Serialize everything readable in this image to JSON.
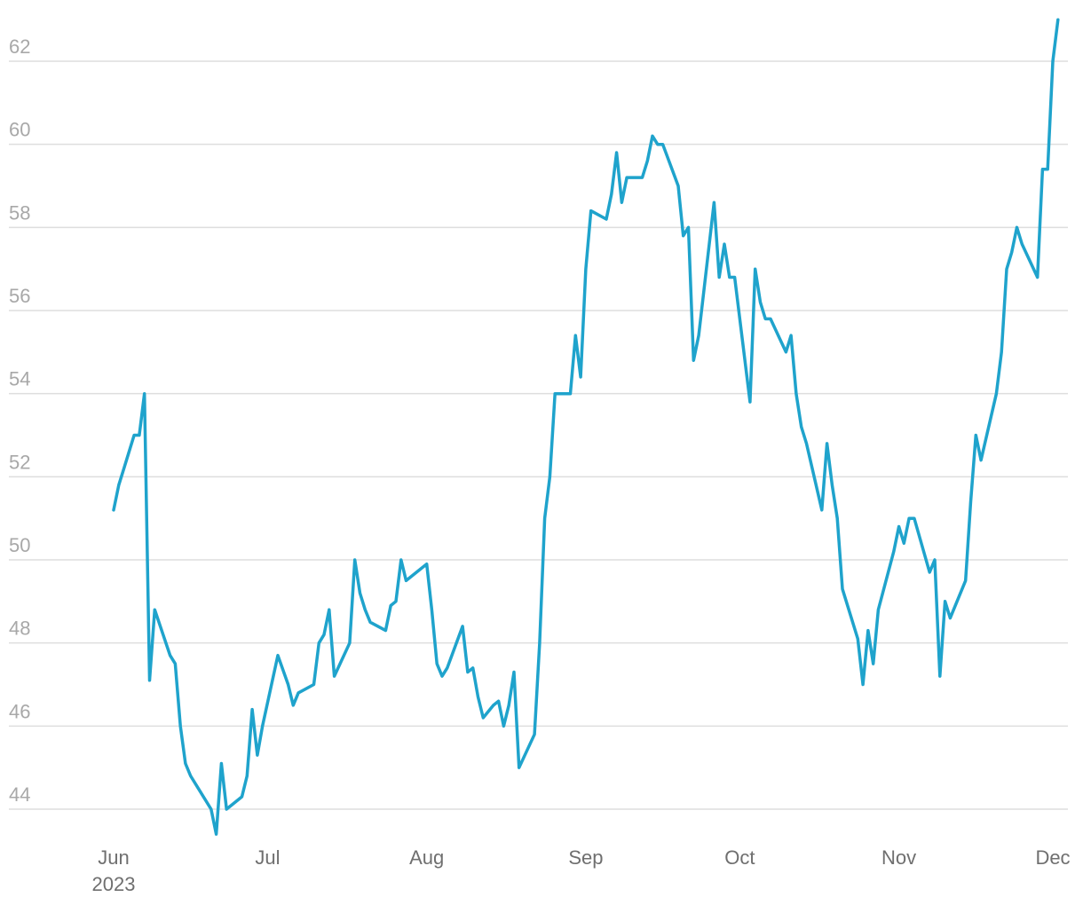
{
  "chart_data": {
    "type": "line",
    "title": "",
    "xlabel": "",
    "ylabel": "",
    "grid": "horizontal",
    "legend": "none",
    "colors": {
      "line": "#1fa3cc",
      "grid": "#dedede",
      "ytick": "#a8a8a8",
      "xtick": "#6f6f6f"
    },
    "ylim": [
      43.2,
      63
    ],
    "xlim": [
      "2023-05-27",
      "2023-12-01"
    ],
    "y_ticks": [
      44,
      46,
      48,
      50,
      52,
      54,
      56,
      58,
      60,
      62
    ],
    "x_ticks": [
      {
        "date": "2023-06-01",
        "label": "Jun",
        "sublabel": "2023"
      },
      {
        "date": "2023-07-01",
        "label": "Jul",
        "sublabel": ""
      },
      {
        "date": "2023-08-01",
        "label": "Aug",
        "sublabel": ""
      },
      {
        "date": "2023-09-01",
        "label": "Sep",
        "sublabel": ""
      },
      {
        "date": "2023-10-01",
        "label": "Oct",
        "sublabel": ""
      },
      {
        "date": "2023-11-01",
        "label": "Nov",
        "sublabel": ""
      },
      {
        "date": "2023-12-01",
        "label": "Dec",
        "sublabel": ""
      }
    ],
    "series": [
      {
        "values": [
          [
            "2023-06-01",
            51.2
          ],
          [
            "2023-06-02",
            51.8
          ],
          [
            "2023-06-03",
            52.2
          ],
          [
            "2023-06-05",
            53.0
          ],
          [
            "2023-06-06",
            53.0
          ],
          [
            "2023-06-07",
            54.0
          ],
          [
            "2023-06-08",
            47.1
          ],
          [
            "2023-06-09",
            48.8
          ],
          [
            "2023-06-12",
            47.7
          ],
          [
            "2023-06-13",
            47.5
          ],
          [
            "2023-06-14",
            46.0
          ],
          [
            "2023-06-15",
            45.1
          ],
          [
            "2023-06-16",
            44.8
          ],
          [
            "2023-06-20",
            44.0
          ],
          [
            "2023-06-21",
            43.4
          ],
          [
            "2023-06-22",
            45.1
          ],
          [
            "2023-06-23",
            44.0
          ],
          [
            "2023-06-26",
            44.3
          ],
          [
            "2023-06-27",
            44.8
          ],
          [
            "2023-06-28",
            46.4
          ],
          [
            "2023-06-29",
            45.3
          ],
          [
            "2023-06-30",
            46.0
          ],
          [
            "2023-07-03",
            47.7
          ],
          [
            "2023-07-05",
            47.0
          ],
          [
            "2023-07-06",
            46.5
          ],
          [
            "2023-07-07",
            46.8
          ],
          [
            "2023-07-10",
            47.0
          ],
          [
            "2023-07-11",
            48.0
          ],
          [
            "2023-07-12",
            48.2
          ],
          [
            "2023-07-13",
            48.8
          ],
          [
            "2023-07-14",
            47.2
          ],
          [
            "2023-07-17",
            48.0
          ],
          [
            "2023-07-18",
            50.0
          ],
          [
            "2023-07-19",
            49.2
          ],
          [
            "2023-07-20",
            48.8
          ],
          [
            "2023-07-21",
            48.5
          ],
          [
            "2023-07-24",
            48.3
          ],
          [
            "2023-07-25",
            48.9
          ],
          [
            "2023-07-26",
            49.0
          ],
          [
            "2023-07-27",
            50.0
          ],
          [
            "2023-07-28",
            49.5
          ],
          [
            "2023-07-31",
            49.8
          ],
          [
            "2023-08-01",
            49.9
          ],
          [
            "2023-08-02",
            48.8
          ],
          [
            "2023-08-03",
            47.5
          ],
          [
            "2023-08-04",
            47.2
          ],
          [
            "2023-08-05",
            47.4
          ],
          [
            "2023-08-08",
            48.4
          ],
          [
            "2023-08-09",
            47.3
          ],
          [
            "2023-08-10",
            47.4
          ],
          [
            "2023-08-11",
            46.7
          ],
          [
            "2023-08-12",
            46.2
          ],
          [
            "2023-08-14",
            46.5
          ],
          [
            "2023-08-15",
            46.6
          ],
          [
            "2023-08-16",
            46.0
          ],
          [
            "2023-08-17",
            46.5
          ],
          [
            "2023-08-18",
            47.3
          ],
          [
            "2023-08-19",
            45.0
          ],
          [
            "2023-08-22",
            45.8
          ],
          [
            "2023-08-23",
            48.0
          ],
          [
            "2023-08-24",
            51.0
          ],
          [
            "2023-08-25",
            52.0
          ],
          [
            "2023-08-26",
            54.0
          ],
          [
            "2023-08-29",
            54.0
          ],
          [
            "2023-08-30",
            55.4
          ],
          [
            "2023-08-31",
            54.4
          ],
          [
            "2023-09-01",
            57.0
          ],
          [
            "2023-09-02",
            58.4
          ],
          [
            "2023-09-05",
            58.2
          ],
          [
            "2023-09-06",
            58.8
          ],
          [
            "2023-09-07",
            59.8
          ],
          [
            "2023-09-08",
            58.6
          ],
          [
            "2023-09-09",
            59.2
          ],
          [
            "2023-09-12",
            59.2
          ],
          [
            "2023-09-13",
            59.6
          ],
          [
            "2023-09-14",
            60.2
          ],
          [
            "2023-09-15",
            60.0
          ],
          [
            "2023-09-16",
            60.0
          ],
          [
            "2023-09-19",
            59.0
          ],
          [
            "2023-09-20",
            57.8
          ],
          [
            "2023-09-21",
            58.0
          ],
          [
            "2023-09-22",
            54.8
          ],
          [
            "2023-09-23",
            55.4
          ],
          [
            "2023-09-26",
            58.6
          ],
          [
            "2023-09-27",
            56.8
          ],
          [
            "2023-09-28",
            57.6
          ],
          [
            "2023-09-29",
            56.8
          ],
          [
            "2023-09-30",
            56.8
          ],
          [
            "2023-10-03",
            53.8
          ],
          [
            "2023-10-04",
            57.0
          ],
          [
            "2023-10-05",
            56.2
          ],
          [
            "2023-10-06",
            55.8
          ],
          [
            "2023-10-07",
            55.8
          ],
          [
            "2023-10-10",
            55.0
          ],
          [
            "2023-10-11",
            55.4
          ],
          [
            "2023-10-12",
            54.0
          ],
          [
            "2023-10-13",
            53.2
          ],
          [
            "2023-10-14",
            52.8
          ],
          [
            "2023-10-17",
            51.2
          ],
          [
            "2023-10-18",
            52.8
          ],
          [
            "2023-10-19",
            51.8
          ],
          [
            "2023-10-20",
            51.0
          ],
          [
            "2023-10-21",
            49.3
          ],
          [
            "2023-10-24",
            48.1
          ],
          [
            "2023-10-25",
            47.0
          ],
          [
            "2023-10-26",
            48.3
          ],
          [
            "2023-10-27",
            47.5
          ],
          [
            "2023-10-28",
            48.8
          ],
          [
            "2023-10-31",
            50.2
          ],
          [
            "2023-11-01",
            50.8
          ],
          [
            "2023-11-02",
            50.4
          ],
          [
            "2023-11-03",
            51.0
          ],
          [
            "2023-11-04",
            51.0
          ],
          [
            "2023-11-07",
            49.7
          ],
          [
            "2023-11-08",
            50.0
          ],
          [
            "2023-11-09",
            47.2
          ],
          [
            "2023-11-10",
            49.0
          ],
          [
            "2023-11-11",
            48.6
          ],
          [
            "2023-11-14",
            49.5
          ],
          [
            "2023-11-15",
            51.4
          ],
          [
            "2023-11-16",
            53.0
          ],
          [
            "2023-11-17",
            52.4
          ],
          [
            "2023-11-20",
            54.0
          ],
          [
            "2023-11-21",
            55.0
          ],
          [
            "2023-11-22",
            57.0
          ],
          [
            "2023-11-23",
            57.4
          ],
          [
            "2023-11-24",
            58.0
          ],
          [
            "2023-11-25",
            57.6
          ],
          [
            "2023-11-28",
            56.8
          ],
          [
            "2023-11-29",
            59.4
          ],
          [
            "2023-11-30",
            59.4
          ],
          [
            "2023-12-01",
            62.0
          ],
          [
            "2023-12-02",
            63.0
          ]
        ]
      }
    ]
  }
}
